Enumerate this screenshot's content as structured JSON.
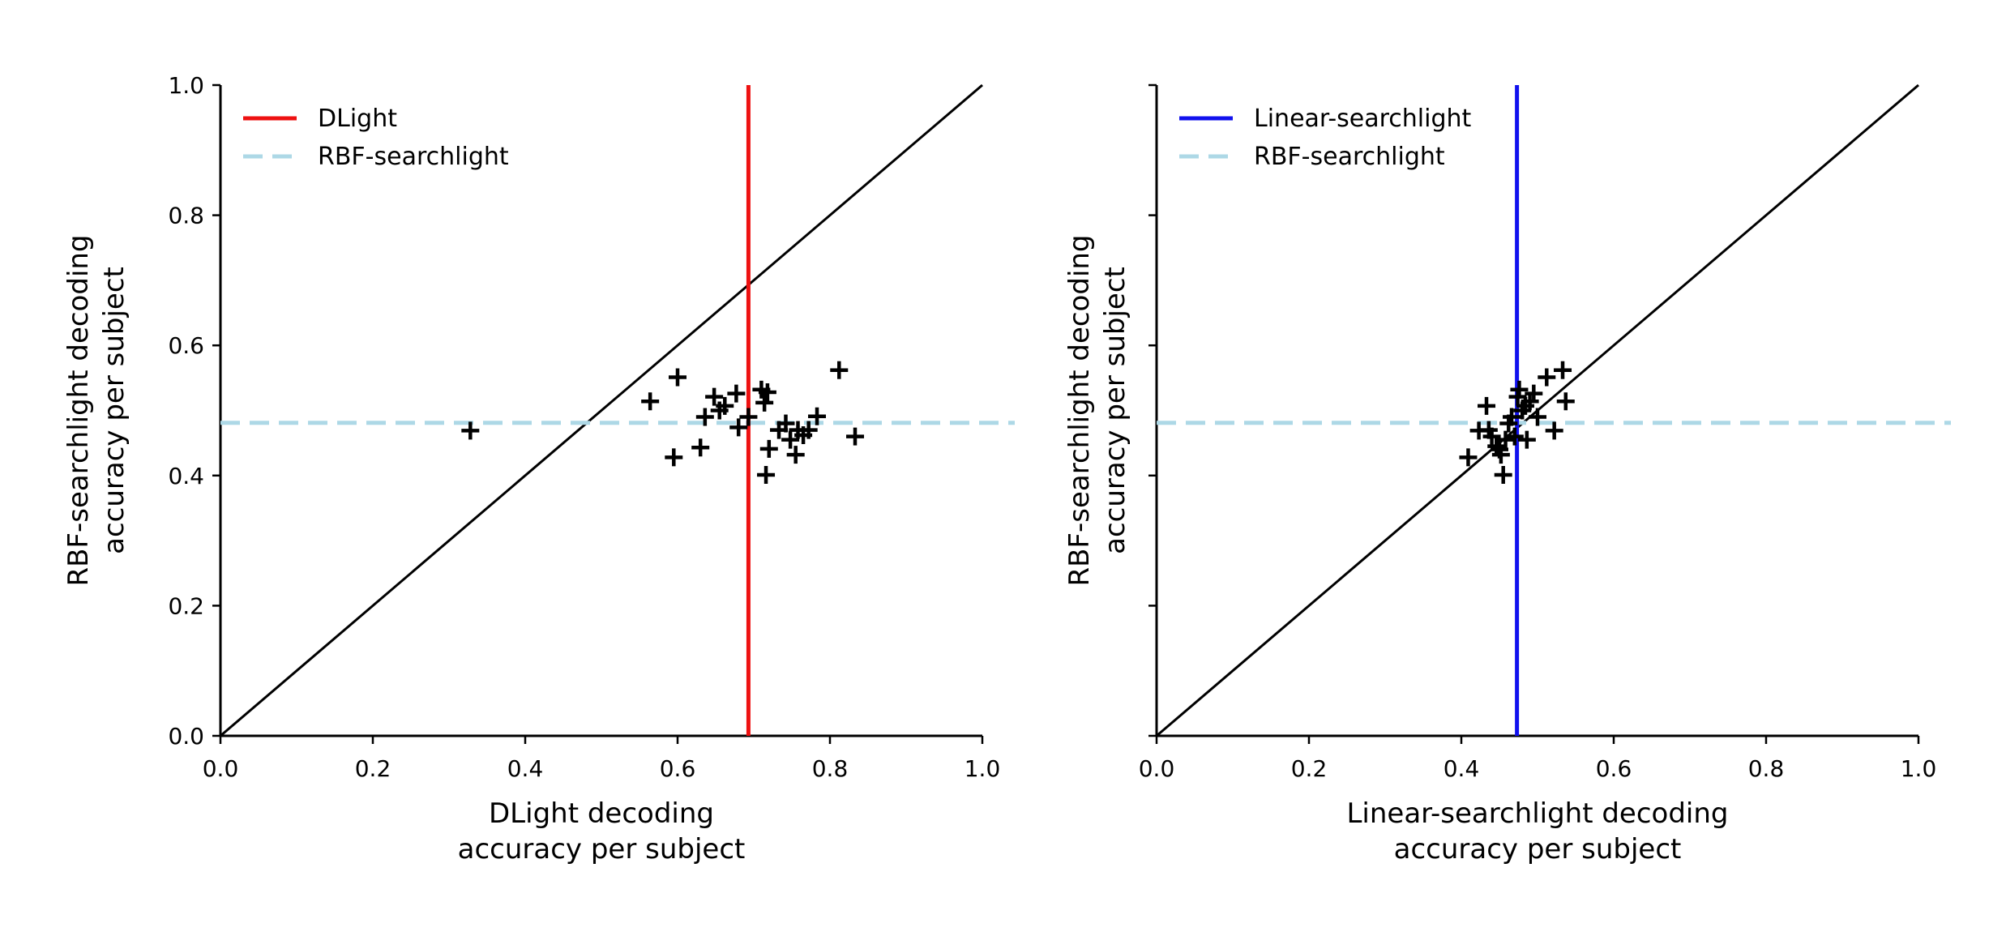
{
  "chart_data": [
    {
      "type": "scatter",
      "xlabel": [
        "DLight decoding",
        "accuracy per subject"
      ],
      "ylabel": [
        "RBF-searchlight decoding",
        "accuracy per subject"
      ],
      "xlim": [
        0.0,
        1.0
      ],
      "ylim": [
        0.0,
        1.0
      ],
      "xticks": [
        "0.0",
        "0.2",
        "0.4",
        "0.6",
        "0.8",
        "1.0"
      ],
      "yticks": [
        "0.0",
        "0.2",
        "0.4",
        "0.6",
        "0.8",
        "1.0"
      ],
      "show_ytick_labels": true,
      "grid": false,
      "legend_position": "top-left",
      "legend": [
        {
          "label": "DLight",
          "style": "solid",
          "color": "#ee1111"
        },
        {
          "label": "RBF-searchlight",
          "style": "dashed",
          "color": "#add8e6"
        }
      ],
      "vline": {
        "x": 0.693,
        "color": "#ee1111"
      },
      "hline": {
        "y": 0.481,
        "color": "#add8e6"
      },
      "diagonal": true,
      "marker": "+",
      "marker_color": "#000000",
      "points": [
        [
          0.328,
          0.469
        ],
        [
          0.564,
          0.514
        ],
        [
          0.595,
          0.428
        ],
        [
          0.6,
          0.551
        ],
        [
          0.63,
          0.443
        ],
        [
          0.636,
          0.49
        ],
        [
          0.648,
          0.521
        ],
        [
          0.655,
          0.5
        ],
        [
          0.662,
          0.507
        ],
        [
          0.677,
          0.526
        ],
        [
          0.68,
          0.474
        ],
        [
          0.693,
          0.49
        ],
        [
          0.71,
          0.532
        ],
        [
          0.714,
          0.512
        ],
        [
          0.716,
          0.401
        ],
        [
          0.718,
          0.528
        ],
        [
          0.72,
          0.441
        ],
        [
          0.733,
          0.47
        ],
        [
          0.742,
          0.48
        ],
        [
          0.748,
          0.455
        ],
        [
          0.755,
          0.432
        ],
        [
          0.758,
          0.47
        ],
        [
          0.765,
          0.462
        ],
        [
          0.772,
          0.47
        ],
        [
          0.783,
          0.491
        ],
        [
          0.812,
          0.562
        ],
        [
          0.833,
          0.46
        ]
      ]
    },
    {
      "type": "scatter",
      "xlabel": [
        "Linear-searchlight decoding",
        "accuracy per subject"
      ],
      "ylabel": [
        "RBF-searchlight decoding",
        "accuracy per subject"
      ],
      "xlim": [
        0.0,
        1.0
      ],
      "ylim": [
        0.0,
        1.0
      ],
      "xticks": [
        "0.0",
        "0.2",
        "0.4",
        "0.6",
        "0.8",
        "1.0"
      ],
      "yticks": [
        "0.0",
        "0.2",
        "0.4",
        "0.6",
        "0.8",
        "1.0"
      ],
      "show_ytick_labels": false,
      "grid": false,
      "legend_position": "top-left",
      "legend": [
        {
          "label": "Linear-searchlight",
          "style": "solid",
          "color": "#1111ee"
        },
        {
          "label": "RBF-searchlight",
          "style": "dashed",
          "color": "#add8e6"
        }
      ],
      "vline": {
        "x": 0.473,
        "color": "#1111ee"
      },
      "hline": {
        "y": 0.481,
        "color": "#add8e6"
      },
      "diagonal": true,
      "marker": "+",
      "marker_color": "#000000",
      "points": [
        [
          0.409,
          0.428
        ],
        [
          0.423,
          0.469
        ],
        [
          0.433,
          0.507
        ],
        [
          0.436,
          0.47
        ],
        [
          0.44,
          0.46
        ],
        [
          0.446,
          0.445
        ],
        [
          0.45,
          0.44
        ],
        [
          0.452,
          0.432
        ],
        [
          0.455,
          0.401
        ],
        [
          0.458,
          0.455
        ],
        [
          0.462,
          0.48
        ],
        [
          0.466,
          0.49
        ],
        [
          0.47,
          0.46
        ],
        [
          0.474,
          0.521
        ],
        [
          0.476,
          0.532
        ],
        [
          0.48,
          0.5
        ],
        [
          0.484,
          0.507
        ],
        [
          0.486,
          0.455
        ],
        [
          0.49,
          0.514
        ],
        [
          0.495,
          0.526
        ],
        [
          0.5,
          0.49
        ],
        [
          0.512,
          0.551
        ],
        [
          0.522,
          0.469
        ],
        [
          0.533,
          0.562
        ],
        [
          0.537,
          0.514
        ]
      ]
    }
  ]
}
